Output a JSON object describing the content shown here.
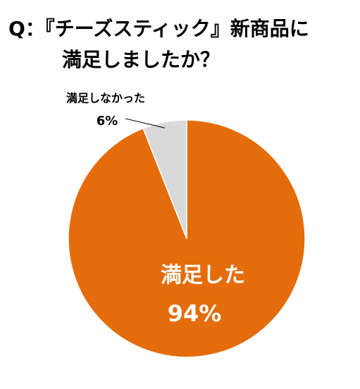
{
  "chart_data": {
    "type": "pie",
    "title": [
      "Q：『チーズスティック』新商品に",
      "満足しましたか？"
    ],
    "categories": [
      "満足した",
      "満足しなかった"
    ],
    "values": [
      94,
      6
    ],
    "value_labels": [
      "94%",
      "6%"
    ],
    "colors": [
      "#e46c0a",
      "#d9d9d9"
    ]
  }
}
